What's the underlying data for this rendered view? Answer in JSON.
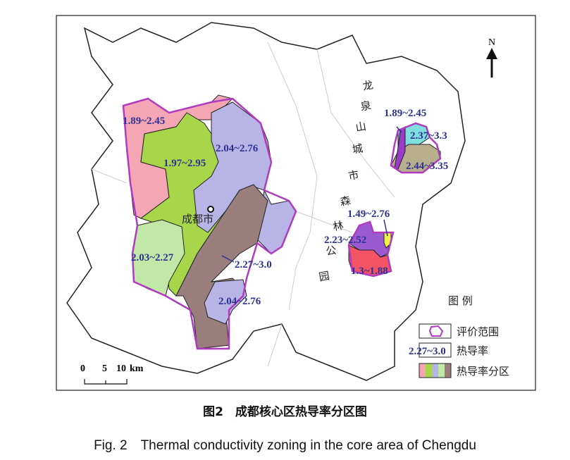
{
  "north_label": "N",
  "city_label": "成都市",
  "park_label": [
    "龙",
    "泉",
    "山",
    "城",
    "市",
    "森",
    "林",
    "公",
    "园"
  ],
  "zones_west": [
    {
      "range": "1.89~2.45",
      "color": "#f4a6b4"
    },
    {
      "range": "1.97~2.95",
      "color": "#a7d64a"
    },
    {
      "range": "2.04~2.76",
      "color": "#b8b5e6"
    },
    {
      "range": "2.03~2.27",
      "color": "#c2e8a8"
    },
    {
      "range": "2.27~3.0",
      "color": "#9a7e7e"
    },
    {
      "range": "2.04~2.76",
      "color": "#b8b5e6"
    }
  ],
  "zones_east": [
    {
      "range": "1.89~2.45",
      "color": "#9b3cc9"
    },
    {
      "range": "2.37~3.3",
      "color": "#7fdede"
    },
    {
      "range": "2.44~3.35",
      "color": "#b8b08c"
    },
    {
      "range": "1.49~2.76",
      "color": "#f0f04a"
    },
    {
      "range": "2.23~2.52",
      "color": "#9b5ad0"
    },
    {
      "range": "1.3~1.88",
      "color": "#f25466"
    }
  ],
  "boundary_color": "#b03ac0",
  "scale": {
    "ticks": [
      "0",
      "5",
      "10"
    ],
    "unit": "km"
  },
  "legend": {
    "title": "图  例",
    "items": [
      {
        "label": "评价范围",
        "symbol": "boundary"
      },
      {
        "label": "热导率",
        "sample": "2.27~3.0"
      },
      {
        "label": "热导率分区",
        "colors": [
          "#f4a6b4",
          "#a7d64a",
          "#b8b5e6",
          "#c2e8a8",
          "#9a7e7e"
        ]
      }
    ]
  },
  "caption_cn": "图2　成都核心区热导率分区图",
  "caption_en": "Fig. 2　Thermal conductivity zoning in the core area of Chengdu"
}
